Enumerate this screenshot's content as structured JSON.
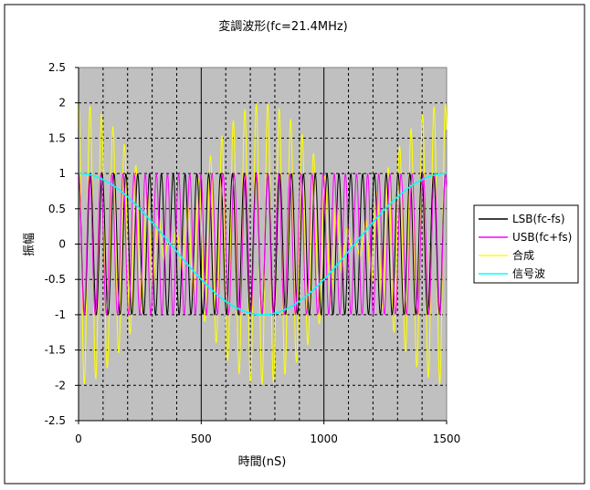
{
  "chart_data": {
    "type": "line",
    "title": "変調波形(fc=21.4MHz)",
    "xlabel": "時間(nS)",
    "ylabel": "振幅",
    "xlim": [
      0,
      1500
    ],
    "ylim": [
      -2.5,
      2.5
    ],
    "x_ticks": [
      "0",
      "500",
      "1000",
      "1500"
    ],
    "y_ticks": [
      "2.5",
      "2",
      "1.5",
      "1",
      "0.5",
      "0",
      "-0.5",
      "-1",
      "-1.5",
      "-2",
      "-2.5"
    ],
    "grid": true,
    "legend_position": "right",
    "plot_background": "#c0c0c0",
    "series": [
      {
        "name": "LSB(fc-fs)",
        "color": "#000000",
        "amplitude": 1,
        "frequency_mhz": 20.733,
        "x_step": 2
      },
      {
        "name": "USB(fc+fs)",
        "color": "#ff00ff",
        "amplitude": 1,
        "frequency_mhz": 22.067,
        "x_step": 2
      },
      {
        "name": "合成",
        "color": "#ffff00",
        "amplitude": 2,
        "frequency_mhz": 21.4,
        "envelope": "USB+LSB",
        "x_step": 2
      },
      {
        "name": "信号波",
        "color": "#00ffff",
        "amplitude": 1,
        "frequency_mhz": 0.6667,
        "x_step": 2
      }
    ]
  }
}
